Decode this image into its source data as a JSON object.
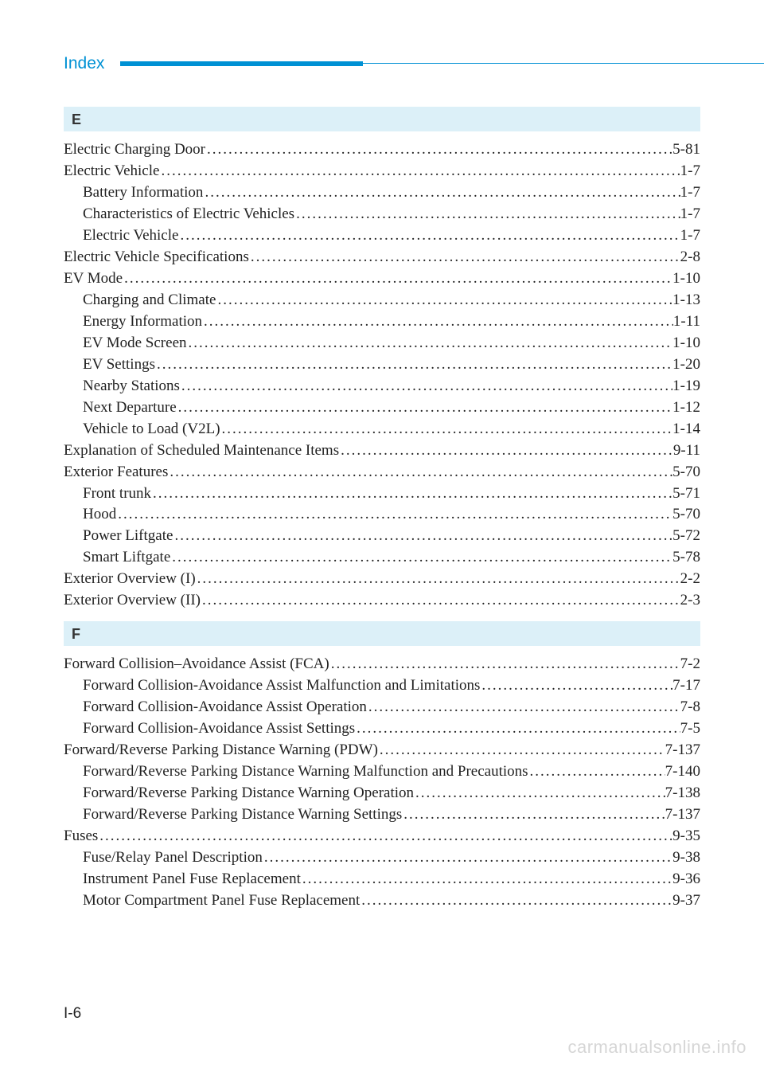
{
  "header": {
    "title": "Index"
  },
  "sections": [
    {
      "letter": "E",
      "entries": [
        {
          "label": "Electric Charging Door",
          "page": "5-81",
          "indent": 0
        },
        {
          "label": "Electric Vehicle",
          "page": "1-7",
          "indent": 0
        },
        {
          "label": "Battery Information",
          "page": "1-7",
          "indent": 1
        },
        {
          "label": "Characteristics of Electric Vehicles",
          "page": "1-7",
          "indent": 1
        },
        {
          "label": "Electric Vehicle",
          "page": "1-7",
          "indent": 1
        },
        {
          "label": "Electric Vehicle Specifications",
          "page": "2-8",
          "indent": 0
        },
        {
          "label": "EV Mode",
          "page": "1-10",
          "indent": 0
        },
        {
          "label": "Charging and Climate",
          "page": "1-13",
          "indent": 1
        },
        {
          "label": "Energy Information",
          "page": "1-11",
          "indent": 1
        },
        {
          "label": "EV Mode Screen",
          "page": "1-10",
          "indent": 1
        },
        {
          "label": "EV Settings",
          "page": "1-20",
          "indent": 1
        },
        {
          "label": "Nearby Stations ",
          "page": "1-19",
          "indent": 1
        },
        {
          "label": "Next Departure",
          "page": "1-12",
          "indent": 1
        },
        {
          "label": "Vehicle to Load (V2L)",
          "page": "1-14",
          "indent": 1
        },
        {
          "label": "Explanation of Scheduled Maintenance Items",
          "page": "9-11",
          "indent": 0
        },
        {
          "label": "Exterior Features",
          "page": "5-70",
          "indent": 0
        },
        {
          "label": "Front trunk",
          "page": "5-71",
          "indent": 1
        },
        {
          "label": "Hood",
          "page": "5-70",
          "indent": 1
        },
        {
          "label": "Power Liftgate",
          "page": "5-72",
          "indent": 1
        },
        {
          "label": "Smart Liftgate",
          "page": "5-78",
          "indent": 1
        },
        {
          "label": "Exterior Overview (I)",
          "page": "2-2",
          "indent": 0
        },
        {
          "label": "Exterior Overview (II)",
          "page": "2-3",
          "indent": 0
        }
      ]
    },
    {
      "letter": "F",
      "entries": [
        {
          "label": "Forward Collision–Avoidance Assist (FCA) ",
          "page": "7-2",
          "indent": 0
        },
        {
          "label": "Forward Collision-Avoidance Assist Malfunction and Limitations",
          "page": "7-17",
          "indent": 1
        },
        {
          "label": "Forward Collision-Avoidance Assist Operation",
          "page": "7-8",
          "indent": 1
        },
        {
          "label": "Forward Collision-Avoidance Assist Settings",
          "page": "7-5",
          "indent": 1
        },
        {
          "label": "Forward/Reverse Parking Distance Warning (PDW) ",
          "page": "7-137",
          "indent": 0
        },
        {
          "label": "Forward/Reverse Parking Distance Warning Malfunction and Precautions",
          "page": "7-140",
          "indent": 1
        },
        {
          "label": "Forward/Reverse Parking Distance Warning Operation",
          "page": "7-138",
          "indent": 1
        },
        {
          "label": "Forward/Reverse Parking Distance Warning Settings",
          "page": "7-137",
          "indent": 1
        },
        {
          "label": "Fuses",
          "page": "9-35",
          "indent": 0
        },
        {
          "label": "Fuse/Relay Panel Description",
          "page": "9-38",
          "indent": 1
        },
        {
          "label": "Instrument Panel Fuse Replacement",
          "page": "9-36",
          "indent": 1
        },
        {
          "label": "Motor Compartment Panel Fuse Replacement",
          "page": "9-37",
          "indent": 1
        }
      ]
    }
  ],
  "pageNumber": "I-6",
  "watermark": "carmanualsonline.info",
  "colors": {
    "accent": "#0091d4",
    "sectionBg": "#dcf0f8",
    "watermark": "#d6d6d6"
  }
}
